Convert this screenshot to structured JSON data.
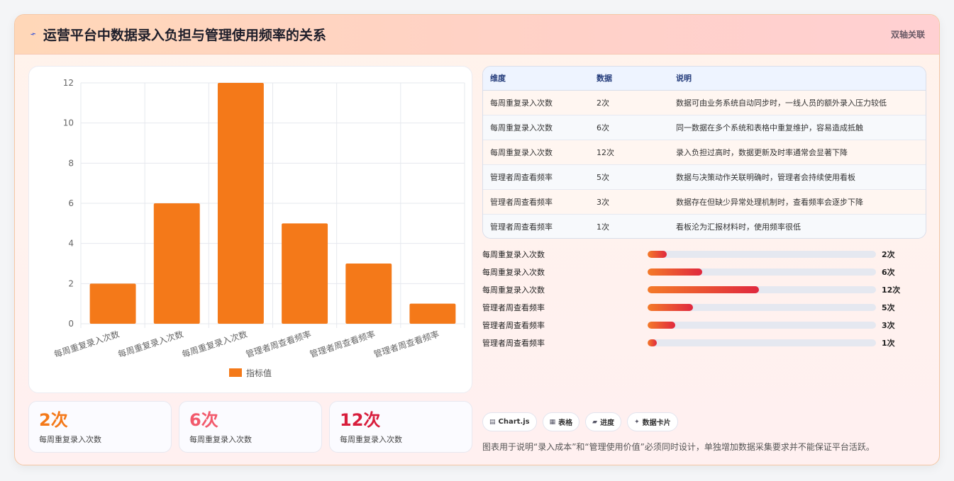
{
  "header": {
    "title": "运营平台中数据录入负担与管理使用频率的关系",
    "tag": "双轴关联",
    "icon": "chart-line-icon"
  },
  "chart_data": {
    "type": "bar",
    "categories": [
      "每周重复录入次数",
      "每周重复录入次数",
      "每周重复录入次数",
      "管理者周查看频率",
      "管理者周查看频率",
      "管理者周查看频率"
    ],
    "series": [
      {
        "name": "指标值",
        "values": [
          2,
          6,
          12,
          5,
          3,
          1
        ],
        "color": "#f47919"
      }
    ],
    "ylim": [
      0,
      12
    ],
    "yticks": [
      "0",
      "2",
      "4",
      "6",
      "8",
      "10",
      "12"
    ],
    "grid": true,
    "legend": "bottom"
  },
  "kpis": [
    {
      "value": "2次",
      "label": "每周重复录入次数",
      "color": "#f47919"
    },
    {
      "value": "6次",
      "label": "每周重复录入次数",
      "color": "#f25a6c"
    },
    {
      "value": "12次",
      "label": "每周重复录入次数",
      "color": "#d81e3c"
    }
  ],
  "table": {
    "headers": [
      "维度",
      "数据",
      "说明"
    ],
    "rows": [
      [
        "每周重复录入次数",
        "2次",
        "数据可由业务系统自动同步时，一线人员的额外录入压力较低"
      ],
      [
        "每周重复录入次数",
        "6次",
        "同一数据在多个系统和表格中重复维护，容易造成抵触"
      ],
      [
        "每周重复录入次数",
        "12次",
        "录入负担过高时，数据更新及时率通常会显著下降"
      ],
      [
        "管理者周查看频率",
        "5次",
        "数据与决策动作关联明确时，管理者会持续使用看板"
      ],
      [
        "管理者周查看频率",
        "3次",
        "数据存在但缺少异常处理机制时，查看频率会逐步下降"
      ],
      [
        "管理者周查看频率",
        "1次",
        "看板沦为汇报材料时，使用频率很低"
      ]
    ]
  },
  "progress": [
    {
      "label": "每周重复录入次数",
      "value": "2次",
      "fraction": 0.083
    },
    {
      "label": "每周重复录入次数",
      "value": "6次",
      "fraction": 0.24
    },
    {
      "label": "每周重复录入次数",
      "value": "12次",
      "fraction": 0.488
    },
    {
      "label": "管理者周查看频率",
      "value": "5次",
      "fraction": 0.2
    },
    {
      "label": "管理者周查看频率",
      "value": "3次",
      "fraction": 0.12
    },
    {
      "label": "管理者周查看频率",
      "value": "1次",
      "fraction": 0.04
    }
  ],
  "pills": [
    {
      "icon": "chart-icon",
      "label": "Chart.js"
    },
    {
      "icon": "table-icon",
      "label": "表格"
    },
    {
      "icon": "progress-icon",
      "label": "进度"
    },
    {
      "icon": "sparkle-icon",
      "label": "数据卡片"
    }
  ],
  "note": "图表用于说明“录入成本”和“管理使用价值”必须同时设计，单独增加数据采集要求并不能保证平台活跃。"
}
